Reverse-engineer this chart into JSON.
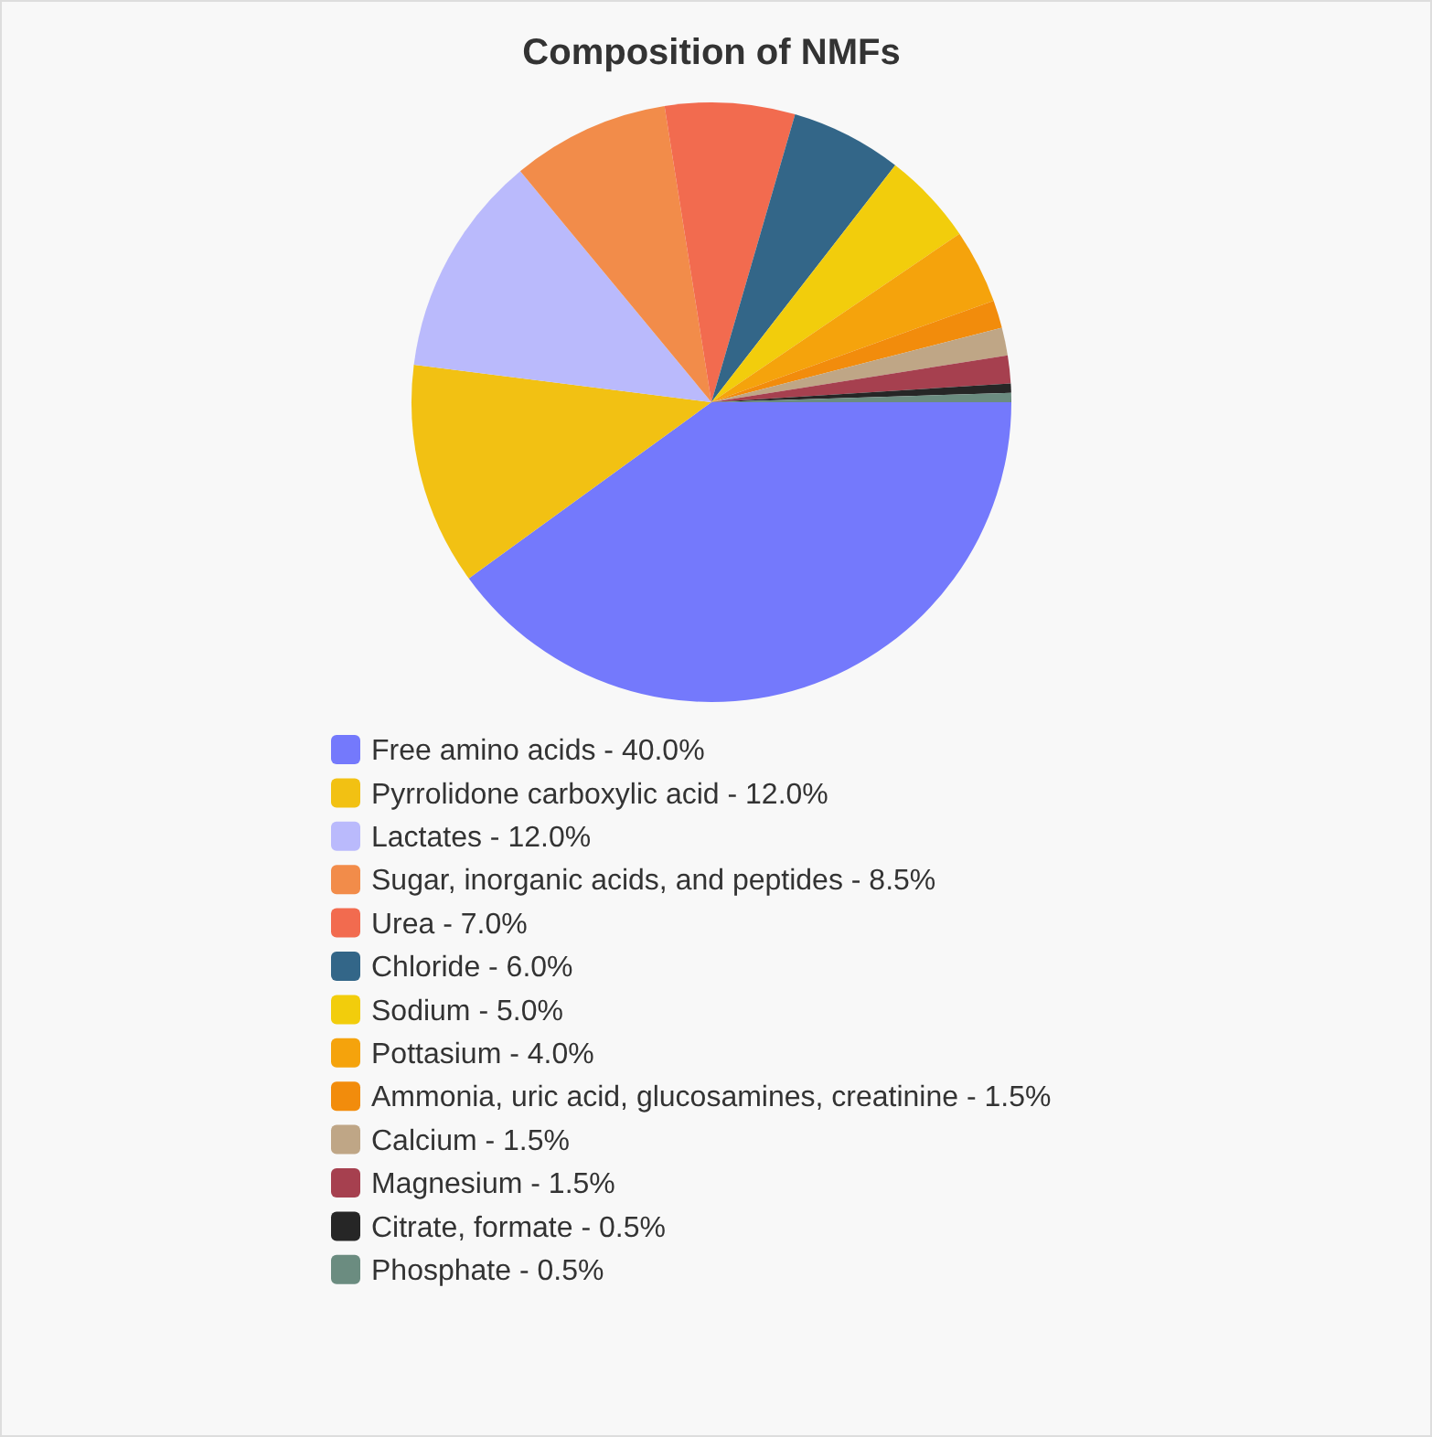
{
  "chart_data": {
    "type": "pie",
    "title": "Composition of NMFs",
    "categories": [
      "Free amino acids - 40.0%",
      "Pyrrolidone carboxylic acid - 12.0%",
      "Lactates - 12.0%",
      "Sugar, inorganic acids, and peptides - 8.5%",
      "Urea - 7.0%",
      "Chloride - 6.0%",
      "Sodium - 5.0%",
      "Pottasium - 4.0%",
      "Ammonia, uric acid, glucosamines, creatinine - 1.5%",
      "Calcium - 1.5%",
      "Magnesium - 1.5%",
      "Citrate, formate - 0.5%",
      "Phosphate - 0.5%"
    ],
    "values": [
      40.0,
      12.0,
      12.0,
      8.5,
      7.0,
      6.0,
      5.0,
      4.0,
      1.5,
      1.5,
      1.5,
      0.5,
      0.5
    ],
    "colors": [
      "#7479fc",
      "#f2c113",
      "#babafc",
      "#f28c4a",
      "#f26b4f",
      "#336688",
      "#f2cd0c",
      "#f5a30c",
      "#f28c0c",
      "#bfa686",
      "#a6404f",
      "#262626",
      "#6b8c80"
    ],
    "legend": "bottom"
  }
}
